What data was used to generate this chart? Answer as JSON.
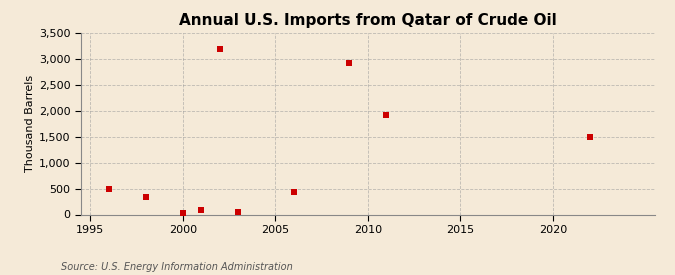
{
  "title": "Annual U.S. Imports from Qatar of Crude Oil",
  "ylabel": "Thousand Barrels",
  "source": "Source: U.S. Energy Information Administration",
  "years": [
    1996,
    1998,
    2000,
    2001,
    2002,
    2003,
    2006,
    2009,
    2011,
    2022
  ],
  "values": [
    500,
    330,
    20,
    90,
    3190,
    50,
    430,
    2930,
    1920,
    1500
  ],
  "marker_color": "#cc0000",
  "marker": "s",
  "marker_size": 4,
  "xlim": [
    1994.5,
    2025.5
  ],
  "ylim": [
    0,
    3500
  ],
  "yticks": [
    0,
    500,
    1000,
    1500,
    2000,
    2500,
    3000,
    3500
  ],
  "xticks": [
    1995,
    2000,
    2005,
    2010,
    2015,
    2020
  ],
  "background_color": "#f5ead8",
  "grid_color": "#999999",
  "title_fontsize": 11,
  "label_fontsize": 8,
  "tick_fontsize": 8,
  "source_fontsize": 7
}
